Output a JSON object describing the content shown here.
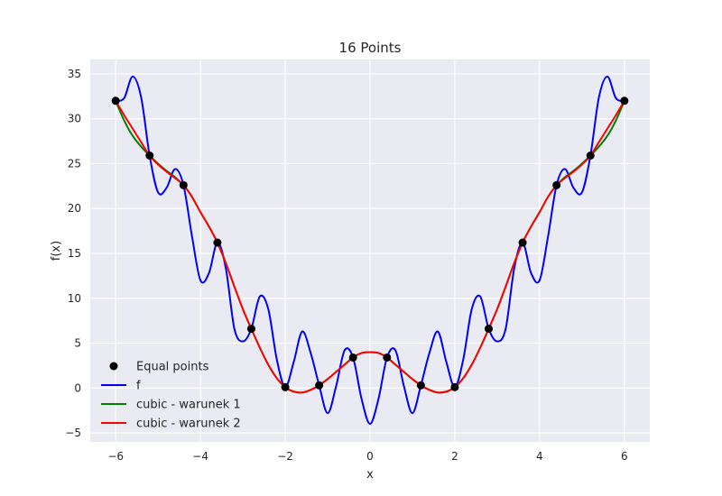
{
  "chart_data": {
    "type": "line",
    "title": "16 Points",
    "xlabel": "x",
    "ylabel": "f(x)",
    "xlim": [
      -6.6,
      6.6
    ],
    "ylim": [
      -6.0,
      36.6
    ],
    "xticks": [
      -6,
      -4,
      -2,
      0,
      2,
      4,
      6
    ],
    "xtick_labels": [
      "−6",
      "−4",
      "−2",
      "0",
      "2",
      "4",
      "6"
    ],
    "yticks": [
      -5,
      0,
      5,
      10,
      15,
      20,
      25,
      30,
      35
    ],
    "ytick_labels": [
      "−5",
      "0",
      "5",
      "10",
      "15",
      "20",
      "25",
      "30",
      "35"
    ],
    "grid": true,
    "legend_position": "lower-left",
    "points": {
      "name": "Equal points",
      "color": "#000000",
      "x": [
        -6.0,
        -5.2,
        -4.4,
        -3.6,
        -2.8,
        -2.0,
        -1.2,
        -0.4,
        0.4,
        1.2,
        2.0,
        2.8,
        3.6,
        4.4,
        5.2,
        6.0
      ],
      "y": [
        32.0,
        25.9,
        22.6,
        16.2,
        6.6,
        0.1,
        0.3,
        3.4,
        3.4,
        0.3,
        0.1,
        6.6,
        16.2,
        22.6,
        25.9,
        32.0
      ]
    },
    "series": [
      {
        "name": "f",
        "color": "#0000ff",
        "x": [
          -6.0,
          -5.8,
          -5.6,
          -5.4,
          -5.2,
          -5.0,
          -4.8,
          -4.6,
          -4.4,
          -4.2,
          -4.0,
          -3.8,
          -3.6,
          -3.4,
          -3.2,
          -3.0,
          -2.8,
          -2.6,
          -2.4,
          -2.2,
          -2.0,
          -1.8,
          -1.6,
          -1.4,
          -1.2,
          -1.0,
          -0.8,
          -0.6,
          -0.4,
          -0.2,
          0.0,
          0.2,
          0.4,
          0.6,
          0.8,
          1.0,
          1.2,
          1.4,
          1.6,
          1.8,
          2.0,
          2.2,
          2.4,
          2.6,
          2.8,
          3.0,
          3.2,
          3.4,
          3.6,
          3.8,
          4.0,
          4.2,
          4.4,
          4.6,
          4.8,
          5.0,
          5.2,
          5.4,
          5.6,
          5.8,
          6.0
        ],
        "y": [
          32.0,
          32.3,
          34.7,
          32.4,
          25.9,
          21.8,
          22.3,
          24.4,
          22.6,
          16.9,
          12.0,
          12.8,
          16.2,
          13.3,
          6.6,
          5.2,
          6.6,
          10.2,
          8.8,
          3.2,
          0.1,
          2.9,
          6.3,
          3.9,
          0.3,
          -2.8,
          0.2,
          4.2,
          3.4,
          -1.2,
          -4.0,
          -1.2,
          3.4,
          4.2,
          0.2,
          -2.8,
          0.3,
          3.9,
          6.3,
          2.9,
          0.1,
          3.2,
          8.8,
          10.2,
          6.6,
          5.2,
          6.6,
          13.3,
          16.2,
          12.8,
          12.0,
          16.9,
          22.6,
          24.4,
          22.3,
          21.8,
          25.9,
          32.4,
          34.7,
          32.3,
          32.0
        ]
      },
      {
        "name": "cubic - warunek 1",
        "color": "#008000",
        "x": [
          -6.0,
          -5.8,
          -5.6,
          -5.4,
          -5.2,
          -5.0,
          -4.8,
          -4.6,
          -4.4,
          -4.2,
          -4.0,
          -3.8,
          -3.6,
          -3.4,
          -3.2,
          -3.0,
          -2.8,
          -2.6,
          -2.4,
          -2.2,
          -2.0,
          -1.8,
          -1.6,
          -1.4,
          -1.2,
          -1.0,
          -0.8,
          -0.6,
          -0.4,
          -0.2,
          0.0,
          0.2,
          0.4,
          0.6,
          0.8,
          1.0,
          1.2,
          1.4,
          1.6,
          1.8,
          2.0,
          2.2,
          2.4,
          2.6,
          2.8,
          3.0,
          3.2,
          3.4,
          3.6,
          3.8,
          4.0,
          4.2,
          4.4,
          4.6,
          4.8,
          5.0,
          5.2,
          5.4,
          5.6,
          5.8,
          6.0
        ],
        "y": [
          32.0,
          29.8,
          28.1,
          26.9,
          25.9,
          25.0,
          24.2,
          23.5,
          22.6,
          21.3,
          19.6,
          18.0,
          16.2,
          13.9,
          11.3,
          8.8,
          6.6,
          4.5,
          2.6,
          1.1,
          0.1,
          -0.4,
          -0.5,
          -0.2,
          0.3,
          1.0,
          1.8,
          2.6,
          3.4,
          3.9,
          4.0,
          3.9,
          3.4,
          2.6,
          1.8,
          1.0,
          0.3,
          -0.2,
          -0.5,
          -0.4,
          0.1,
          1.1,
          2.6,
          4.5,
          6.6,
          8.8,
          11.3,
          13.9,
          16.2,
          18.0,
          19.6,
          21.3,
          22.6,
          23.5,
          24.2,
          25.0,
          25.9,
          26.9,
          28.1,
          29.8,
          32.0
        ]
      },
      {
        "name": "cubic - warunek 2",
        "color": "#ff0000",
        "x": [
          -6.0,
          -5.8,
          -5.6,
          -5.4,
          -5.2,
          -5.0,
          -4.8,
          -4.6,
          -4.4,
          -4.2,
          -4.0,
          -3.8,
          -3.6,
          -3.4,
          -3.2,
          -3.0,
          -2.8,
          -2.6,
          -2.4,
          -2.2,
          -2.0,
          -1.8,
          -1.6,
          -1.4,
          -1.2,
          -1.0,
          -0.8,
          -0.6,
          -0.4,
          -0.2,
          0.0,
          0.2,
          0.4,
          0.6,
          0.8,
          1.0,
          1.2,
          1.4,
          1.6,
          1.8,
          2.0,
          2.2,
          2.4,
          2.6,
          2.8,
          3.0,
          3.2,
          3.4,
          3.6,
          3.8,
          4.0,
          4.2,
          4.4,
          4.6,
          4.8,
          5.0,
          5.2,
          5.4,
          5.6,
          5.8,
          6.0
        ],
        "y": [
          32.0,
          30.4,
          28.9,
          27.4,
          25.9,
          24.9,
          24.1,
          23.4,
          22.6,
          21.3,
          19.6,
          18.0,
          16.2,
          13.9,
          11.3,
          8.8,
          6.6,
          4.5,
          2.6,
          1.1,
          0.1,
          -0.4,
          -0.5,
          -0.2,
          0.3,
          1.0,
          1.8,
          2.6,
          3.4,
          3.9,
          4.0,
          3.9,
          3.4,
          2.6,
          1.8,
          1.0,
          0.3,
          -0.2,
          -0.5,
          -0.4,
          0.1,
          1.1,
          2.6,
          4.5,
          6.6,
          8.8,
          11.3,
          13.9,
          16.2,
          18.0,
          19.6,
          21.3,
          22.6,
          23.4,
          24.1,
          24.9,
          25.9,
          27.4,
          28.9,
          30.4,
          32.0
        ]
      }
    ]
  }
}
